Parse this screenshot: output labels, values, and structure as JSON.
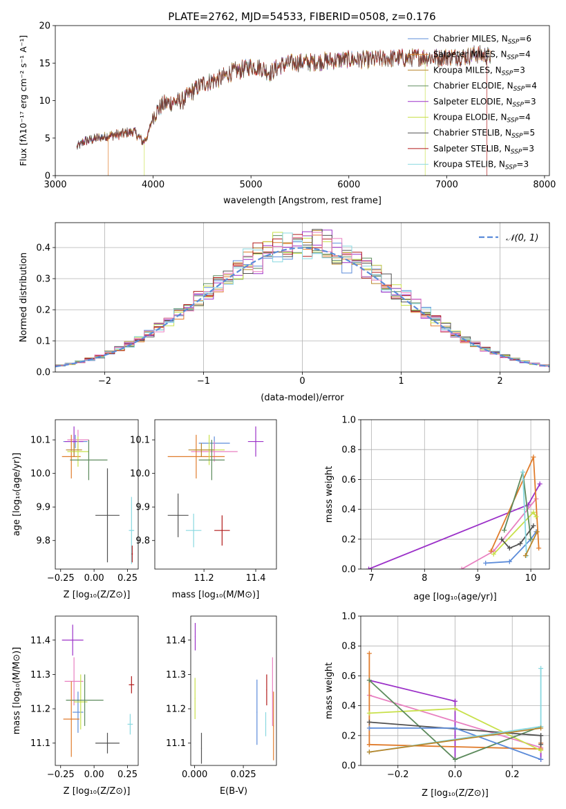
{
  "figure": {
    "title": "PLATE=2762, MJD=54533, FIBERID=0508, z=0.176"
  },
  "colors": {
    "chabrier_miles": "#5b8bd9",
    "salpeter_miles": "#e07b2a",
    "kroupa_miles": "#b8862b",
    "chabrier_elodie": "#5c8a5c",
    "salpeter_elodie": "#9b30c8",
    "kroupa_elodie": "#c8e04a",
    "chabrier_stelib": "#505050",
    "salpeter_stelib": "#b01818",
    "kroupa_stelib": "#88d8e0",
    "pink": "#e87fc0",
    "normal_curve": "#5b8bd9",
    "grid": "#b0b0b0"
  },
  "chart_data": [
    {
      "id": "spectrum",
      "type": "line",
      "title": "PLATE=2762, MJD=54533, FIBERID=0508, z=0.176",
      "xlabel": "wavelength [Angstrom, rest frame]",
      "ylabel": "Flux [fλ10⁻¹⁷ erg cm⁻² s⁻¹ A⁻¹]",
      "xlim": [
        3000,
        8050
      ],
      "ylim": [
        0,
        20
      ],
      "xticks": [
        "3000",
        "4000",
        "5000",
        "6000",
        "7000",
        "8000"
      ],
      "yticks": [
        "0",
        "5",
        "10",
        "15",
        "20"
      ],
      "grid": false,
      "legend_position": "top-right",
      "legend": [
        {
          "label": "Chabrier MILES, N",
          "sub": "SSP",
          "value": "=6",
          "color": "chabrier_miles"
        },
        {
          "label": "Salpeter MILES, N",
          "sub": "SSP",
          "value": "=4",
          "color": "salpeter_miles"
        },
        {
          "label": "Kroupa MILES, N",
          "sub": "SSP",
          "value": "=3",
          "color": "kroupa_miles"
        },
        {
          "label": "Chabrier ELODIE, N",
          "sub": "SSP",
          "value": "=4",
          "color": "chabrier_elodie"
        },
        {
          "label": "Salpeter ELODIE, N",
          "sub": "SSP",
          "value": "=3",
          "color": "salpeter_elodie"
        },
        {
          "label": "Kroupa ELODIE, N",
          "sub": "SSP",
          "value": "=4",
          "color": "kroupa_elodie"
        },
        {
          "label": "Chabrier STELIB, N",
          "sub": "SSP",
          "value": "=5",
          "color": "chabrier_stelib"
        },
        {
          "label": "Salpeter STELIB, N",
          "sub": "SSP",
          "value": "=3",
          "color": "salpeter_stelib"
        },
        {
          "label": "Kroupa STELIB, N",
          "sub": "SSP",
          "value": "=3",
          "color": "kroupa_stelib"
        }
      ],
      "continuum": [
        [
          3220,
          3.8
        ],
        [
          3300,
          4.6
        ],
        [
          3400,
          4.9
        ],
        [
          3500,
          5.2
        ],
        [
          3600,
          5.4
        ],
        [
          3700,
          5.6
        ],
        [
          3800,
          5.9
        ],
        [
          3900,
          4.5
        ],
        [
          3950,
          5.5
        ],
        [
          4000,
          8.0
        ],
        [
          4100,
          9.5
        ],
        [
          4200,
          9.8
        ],
        [
          4300,
          10.0
        ],
        [
          4400,
          11.2
        ],
        [
          4500,
          12.2
        ],
        [
          4600,
          12.6
        ],
        [
          4700,
          13.0
        ],
        [
          4800,
          13.8
        ],
        [
          4900,
          14.1
        ],
        [
          5000,
          14.6
        ],
        [
          5100,
          14.4
        ],
        [
          5200,
          13.7
        ],
        [
          5300,
          14.7
        ],
        [
          5400,
          15.0
        ],
        [
          5500,
          15.1
        ],
        [
          5600,
          15.1
        ],
        [
          5700,
          15.2
        ],
        [
          5800,
          15.3
        ],
        [
          5900,
          15.4
        ],
        [
          6000,
          15.5
        ],
        [
          6100,
          15.5
        ],
        [
          6200,
          15.4
        ],
        [
          6300,
          15.5
        ],
        [
          6400,
          15.6
        ],
        [
          6500,
          15.7
        ],
        [
          6600,
          15.6
        ],
        [
          6700,
          15.8
        ],
        [
          6800,
          15.8
        ],
        [
          6900,
          15.7
        ],
        [
          7000,
          15.8
        ],
        [
          7100,
          15.9
        ],
        [
          7200,
          15.9
        ],
        [
          7300,
          16.2
        ],
        [
          7400,
          16.0
        ],
        [
          7450,
          15.9
        ]
      ],
      "model_cuts": [
        {
          "color": "salpeter_miles",
          "start": 3540
        },
        {
          "color": "kroupa_elodie",
          "start": 3910
        },
        {
          "color": "kroupa_elodie",
          "end": 6780
        },
        {
          "color": "salpeter_stelib",
          "end": 7410
        }
      ]
    },
    {
      "id": "residuals",
      "type": "histogram",
      "xlabel": "(data-model)/error",
      "ylabel": "Normed distribution",
      "xlim": [
        -2.5,
        2.5
      ],
      "ylim": [
        0,
        0.48
      ],
      "xticks": [
        "−2",
        "−1",
        "0",
        "1",
        "2"
      ],
      "yticks": [
        "0.0",
        "0.1",
        "0.2",
        "0.3",
        "0.4"
      ],
      "grid": true,
      "legend_position": "top-right",
      "legend": [
        {
          "label": "𝒩(0, 1)",
          "color": "normal_curve",
          "style": "dashed"
        }
      ],
      "bin_width": 0.1
    },
    {
      "id": "age_vs_Z",
      "type": "errorbar",
      "xlabel": "Z [log₁₀(Z/Z⊙)]",
      "ylabel": "age  [log₁₀(age/yr)]",
      "xlim": [
        -0.29,
        0.33
      ],
      "ylim": [
        9.715,
        10.16
      ],
      "xticks": [
        "−0.25",
        "0.00",
        "0.25"
      ],
      "yticks": [
        "9.8",
        "9.9",
        "10.0",
        "10.1"
      ],
      "points": [
        {
          "color": "chabrier_miles",
          "x": -0.14,
          "y": 10.095,
          "xerr": 0.09,
          "yerr": 0.02
        },
        {
          "color": "salpeter_elodie",
          "x": -0.15,
          "y": 10.095,
          "xerr": 0.07,
          "yerr": 0.045
        },
        {
          "color": "pink",
          "x": -0.12,
          "y": 10.1,
          "xerr": 0.08,
          "yerr": 0.03
        },
        {
          "color": "salpeter_miles",
          "x": -0.17,
          "y": 10.05,
          "xerr": 0.07,
          "yerr": 0.065
        },
        {
          "color": "kroupa_elodie",
          "x": -0.12,
          "y": 10.065,
          "xerr": 0.08,
          "yerr": 0.045
        },
        {
          "color": "kroupa_miles",
          "x": -0.15,
          "y": 10.07,
          "xerr": 0.06,
          "yerr": 0.02
        },
        {
          "color": "chabrier_elodie",
          "x": -0.04,
          "y": 10.04,
          "xerr": 0.14,
          "yerr": 0.06
        },
        {
          "color": "chabrier_stelib",
          "x": 0.1,
          "y": 9.875,
          "xerr": 0.09,
          "yerr": 0.14
        },
        {
          "color": "kroupa_stelib",
          "x": 0.28,
          "y": 9.83,
          "xerr": 0.02,
          "yerr": 0.1
        },
        {
          "color": "salpeter_stelib",
          "x": 0.285,
          "y": 9.76,
          "xerr": 0.005,
          "yerr": 0.025
        }
      ]
    },
    {
      "id": "age_vs_mass",
      "type": "errorbar",
      "xlabel": "mass [log₁₀(M/M⊙)]",
      "ylabel": "",
      "xlim": [
        11.01,
        11.48
      ],
      "ylim": [
        9.715,
        10.16
      ],
      "xticks": [
        "11.2",
        "11.4"
      ],
      "yticks": [
        "9.8",
        "9.9",
        "10.0",
        "10.1"
      ],
      "points": [
        {
          "color": "chabrier_miles",
          "x": 11.24,
          "y": 10.09,
          "xerr": 0.06,
          "yerr": 0.02
        },
        {
          "color": "salpeter_elodie",
          "x": 11.4,
          "y": 10.095,
          "xerr": 0.03,
          "yerr": 0.045
        },
        {
          "color": "pink",
          "x": 11.24,
          "y": 10.065,
          "xerr": 0.09,
          "yerr": 0.03
        },
        {
          "color": "salpeter_miles",
          "x": 11.17,
          "y": 10.05,
          "xerr": 0.11,
          "yerr": 0.065
        },
        {
          "color": "kroupa_elodie",
          "x": 11.22,
          "y": 10.07,
          "xerr": 0.06,
          "yerr": 0.045
        },
        {
          "color": "kroupa_miles",
          "x": 11.19,
          "y": 10.07,
          "xerr": 0.05,
          "yerr": 0.02
        },
        {
          "color": "chabrier_elodie",
          "x": 11.23,
          "y": 10.04,
          "xerr": 0.05,
          "yerr": 0.06
        },
        {
          "color": "chabrier_stelib",
          "x": 11.1,
          "y": 9.875,
          "xerr": 0.04,
          "yerr": 0.065
        },
        {
          "color": "kroupa_stelib",
          "x": 11.16,
          "y": 9.83,
          "xerr": 0.03,
          "yerr": 0.05
        },
        {
          "color": "salpeter_stelib",
          "x": 11.27,
          "y": 9.83,
          "xerr": 0.03,
          "yerr": 0.045
        }
      ]
    },
    {
      "id": "weight_vs_age",
      "type": "line",
      "xlabel": "age  [log₁₀(age/yr)]",
      "ylabel": "mass weight",
      "xlim": [
        6.8,
        10.35
      ],
      "ylim": [
        0,
        1
      ],
      "xticks": [
        "7",
        "8",
        "9",
        "10"
      ],
      "yticks": [
        "0.0",
        "0.2",
        "0.4",
        "0.6",
        "0.8",
        "1.0"
      ],
      "grid": true,
      "series": [
        {
          "color": "salpeter_elodie",
          "x": [
            6.95,
            9.95,
            10.17
          ],
          "y": [
            0.0,
            0.43,
            0.57
          ]
        },
        {
          "color": "pink",
          "x": [
            8.7,
            9.3,
            10.1
          ],
          "y": [
            0.0,
            0.12,
            0.47
          ]
        },
        {
          "color": "chabrier_miles",
          "x": [
            9.15,
            9.6,
            10.0,
            10.1
          ],
          "y": [
            0.04,
            0.05,
            0.2,
            0.25
          ]
        },
        {
          "color": "salpeter_miles",
          "x": [
            9.25,
            10.05,
            10.15
          ],
          "y": [
            0.12,
            0.75,
            0.14
          ]
        },
        {
          "color": "kroupa_elodie",
          "x": [
            9.3,
            10.05,
            10.1
          ],
          "y": [
            0.1,
            0.38,
            0.35
          ]
        },
        {
          "color": "chabrier_elodie",
          "x": [
            9.5,
            9.85,
            10.0
          ],
          "y": [
            0.26,
            0.65,
            0.2
          ]
        },
        {
          "color": "chabrier_stelib",
          "x": [
            9.45,
            9.6,
            9.8,
            10.05
          ],
          "y": [
            0.2,
            0.14,
            0.17,
            0.29
          ]
        },
        {
          "color": "kroupa_stelib",
          "x": [
            9.85,
            9.92
          ],
          "y": [
            0.65,
            0.09
          ]
        },
        {
          "color": "kroupa_miles",
          "x": [
            9.9,
            10.12
          ],
          "y": [
            0.09,
            0.25
          ]
        }
      ]
    },
    {
      "id": "mass_vs_Z",
      "type": "errorbar",
      "xlabel": "Z [log₁₀(Z/Z⊙)]",
      "ylabel": "mass [log₁₀(M/M⊙)]",
      "xlim": [
        -0.29,
        0.33
      ],
      "ylim": [
        11.035,
        11.47
      ],
      "xticks": [
        "−0.25",
        "0.00",
        "0.25"
      ],
      "yticks": [
        "11.1",
        "11.2",
        "11.3",
        "11.4"
      ],
      "points": [
        {
          "color": "salpeter_elodie",
          "x": -0.16,
          "y": 11.4,
          "xerr": 0.08,
          "yerr": 0.045
        },
        {
          "color": "pink",
          "x": -0.15,
          "y": 11.28,
          "xerr": 0.07,
          "yerr": 0.07
        },
        {
          "color": "chabrier_miles",
          "x": -0.12,
          "y": 11.19,
          "xerr": 0.04,
          "yerr": 0.06
        },
        {
          "color": "kroupa_elodie",
          "x": -0.1,
          "y": 11.22,
          "xerr": 0.05,
          "yerr": 0.08
        },
        {
          "color": "chabrier_elodie",
          "x": -0.07,
          "y": 11.225,
          "xerr": 0.14,
          "yerr": 0.075
        },
        {
          "color": "salpeter_miles",
          "x": -0.17,
          "y": 11.17,
          "xerr": 0.06,
          "yerr": 0.11
        },
        {
          "color": "chabrier_stelib",
          "x": 0.1,
          "y": 11.1,
          "xerr": 0.09,
          "yerr": 0.03
        },
        {
          "color": "kroupa_stelib",
          "x": 0.27,
          "y": 11.155,
          "xerr": 0.02,
          "yerr": 0.03
        },
        {
          "color": "salpeter_stelib",
          "x": 0.28,
          "y": 11.27,
          "xerr": 0.02,
          "yerr": 0.025
        }
      ]
    },
    {
      "id": "mass_vs_ebv",
      "type": "errorbar",
      "xlabel": "E(B-V)",
      "ylabel": "",
      "xlim": [
        -0.002,
        0.042
      ],
      "ylim": [
        11.035,
        11.47
      ],
      "xticks": [
        "0.000",
        "0.025"
      ],
      "yticks": [
        "11.1",
        "11.2",
        "11.3",
        "11.4"
      ],
      "points": [
        {
          "color": "salpeter_elodie",
          "x": 0.0003,
          "y": 11.41,
          "xerr": 0.0002,
          "yerr": 0.04
        },
        {
          "color": "kroupa_elodie",
          "x": 0.0002,
          "y": 11.23,
          "xerr": 0.0002,
          "yerr": 0.06
        },
        {
          "color": "chabrier_stelib",
          "x": 0.0035,
          "y": 11.085,
          "xerr": 0.0002,
          "yerr": 0.045
        },
        {
          "color": "chabrier_miles",
          "x": 0.032,
          "y": 11.19,
          "xerr": 0.0002,
          "yerr": 0.095
        },
        {
          "color": "kroupa_stelib",
          "x": 0.0365,
          "y": 11.155,
          "xerr": 0.0002,
          "yerr": 0.035
        },
        {
          "color": "salpeter_stelib",
          "x": 0.037,
          "y": 11.255,
          "xerr": 0.0002,
          "yerr": 0.045
        },
        {
          "color": "pink",
          "x": 0.04,
          "y": 11.25,
          "xerr": 0.0002,
          "yerr": 0.1
        },
        {
          "color": "salpeter_miles",
          "x": 0.0405,
          "y": 11.15,
          "xerr": 0.0002,
          "yerr": 0.1
        }
      ]
    },
    {
      "id": "weight_vs_Z",
      "type": "line",
      "xlabel": "Z [log₁₀(Z/Z⊙)]",
      "ylabel": "mass weight",
      "xlim": [
        -0.33,
        0.33
      ],
      "ylim": [
        0,
        1
      ],
      "xticks": [
        "−0.2",
        "0.0",
        "0.2"
      ],
      "yticks": [
        "0.0",
        "0.2",
        "0.4",
        "0.6",
        "0.8",
        "1.0"
      ],
      "grid": true,
      "series": [
        {
          "color": "salpeter_elodie",
          "x": [
            -0.3,
            0.0
          ],
          "y": [
            0.57,
            0.43
          ]
        },
        {
          "color": "salpeter_elodie",
          "x": [
            0.0,
            0.0
          ],
          "y": [
            0.43,
            0.04
          ]
        },
        {
          "color": "salpeter_elodie",
          "x": [
            0.3,
            0.3
          ],
          "y": [
            0.04,
            0.15
          ]
        },
        {
          "color": "pink",
          "x": [
            -0.3,
            0.3
          ],
          "y": [
            0.47,
            0.12
          ]
        },
        {
          "color": "salpeter_miles",
          "x": [
            -0.3,
            -0.3
          ],
          "y": [
            0.75,
            0.14
          ]
        },
        {
          "color": "salpeter_miles",
          "x": [
            -0.3,
            0.3
          ],
          "y": [
            0.14,
            0.11
          ]
        },
        {
          "color": "salpeter_miles",
          "x": [
            0.3,
            0.3
          ],
          "y": [
            0.11,
            0.15
          ]
        },
        {
          "color": "kroupa_elodie",
          "x": [
            -0.3,
            0.0,
            0.3
          ],
          "y": [
            0.35,
            0.38,
            0.1
          ]
        },
        {
          "color": "chabrier_elodie",
          "x": [
            -0.3,
            0.0,
            0.3
          ],
          "y": [
            0.57,
            0.04,
            0.26
          ]
        },
        {
          "color": "chabrier_stelib",
          "x": [
            -0.3,
            0.3
          ],
          "y": [
            0.29,
            0.2
          ]
        },
        {
          "color": "chabrier_stelib",
          "x": [
            0.3,
            0.3
          ],
          "y": [
            0.2,
            0.14
          ]
        },
        {
          "color": "chabrier_miles",
          "x": [
            -0.3,
            0.0,
            0.3
          ],
          "y": [
            0.25,
            0.25,
            0.04
          ]
        },
        {
          "color": "kroupa_stelib",
          "x": [
            -0.3,
            0.3
          ],
          "y": [
            0.09,
            0.26
          ]
        },
        {
          "color": "kroupa_stelib",
          "x": [
            0.3,
            0.3
          ],
          "y": [
            0.26,
            0.65
          ]
        },
        {
          "color": "kroupa_miles",
          "x": [
            -0.3,
            0.3
          ],
          "y": [
            0.09,
            0.25
          ]
        }
      ]
    }
  ]
}
